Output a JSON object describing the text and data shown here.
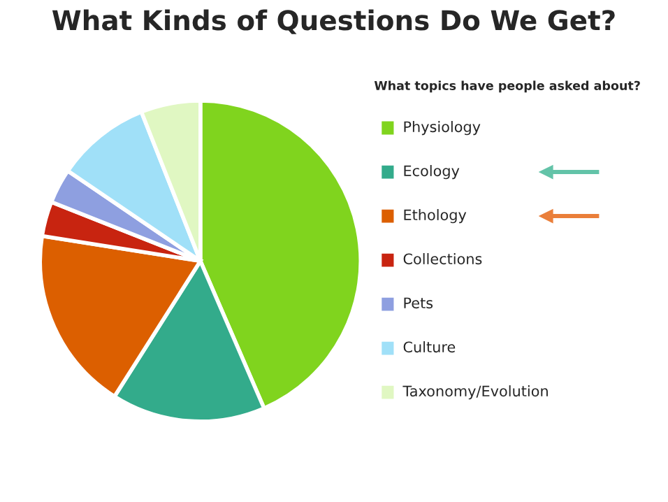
{
  "chart_data": {
    "type": "pie",
    "title": "What Kinds of Questions Do We Get?",
    "legend_title": "What topics have people asked about?",
    "categories": [
      "Physiology",
      "Ecology",
      "Ethology",
      "Collections",
      "Pets",
      "Culture",
      "Taxonomy/Evolution"
    ],
    "values": [
      43.5,
      15.5,
      18.5,
      3.5,
      3.5,
      9.5,
      6
    ],
    "colors": [
      "#80d41e",
      "#33ab8b",
      "#dc5f00",
      "#c82410",
      "#8e9fe0",
      "#a0e0f8",
      "#e0f7c2"
    ],
    "legend": "right"
  }
}
